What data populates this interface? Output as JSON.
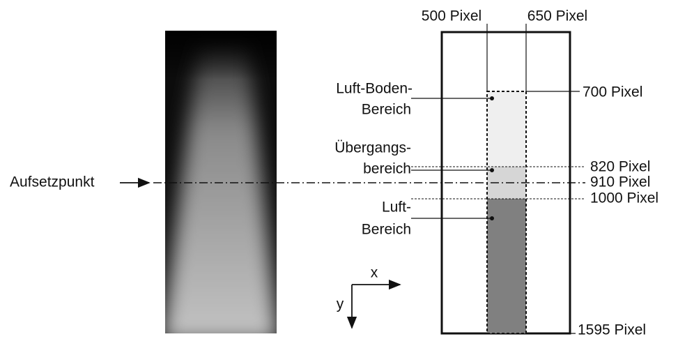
{
  "marker_label": "Aufsetzpunkt",
  "columns": [
    "500 Pixel",
    "650 Pixel"
  ],
  "rows": [
    "700 Pixel",
    "820 Pixel",
    "910 Pixel",
    "1000 Pixel",
    "1595 Pixel"
  ],
  "regions": [
    {
      "label": [
        "Luft-Boden-",
        "Bereich"
      ]
    },
    {
      "label": [
        "Übergangs-",
        "bereich"
      ]
    },
    {
      "label": [
        "Luft-",
        "Bereich"
      ]
    }
  ],
  "axes": {
    "x": "x",
    "y": "y"
  }
}
